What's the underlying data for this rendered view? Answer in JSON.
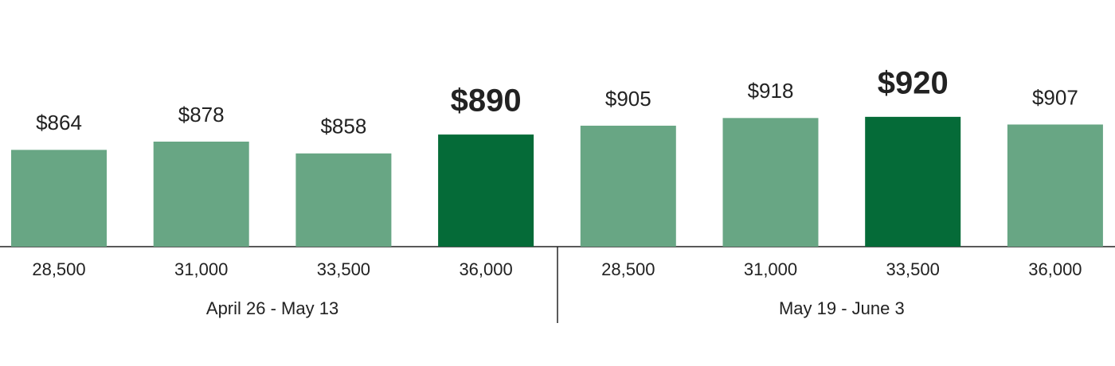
{
  "chart_data": {
    "type": "bar",
    "color": "#68a684",
    "highlight_color": "#056b38",
    "ylim": [
      700,
      1118
    ],
    "groups": [
      {
        "name": "April 26 - May 13",
        "categories": [
          "28,500",
          "31,000",
          "33,500",
          "36,000"
        ],
        "values": [
          864,
          878,
          858,
          890
        ],
        "value_labels": [
          "$864",
          "$878",
          "$858",
          "$890"
        ],
        "highlight": [
          false,
          false,
          false,
          true
        ]
      },
      {
        "name": "May 19 - June 3",
        "categories": [
          "28,500",
          "31,000",
          "33,500",
          "36,000"
        ],
        "values": [
          905,
          918,
          920,
          907
        ],
        "value_labels": [
          "$905",
          "$918",
          "$920",
          "$907"
        ],
        "highlight": [
          false,
          false,
          true,
          false
        ]
      }
    ]
  }
}
